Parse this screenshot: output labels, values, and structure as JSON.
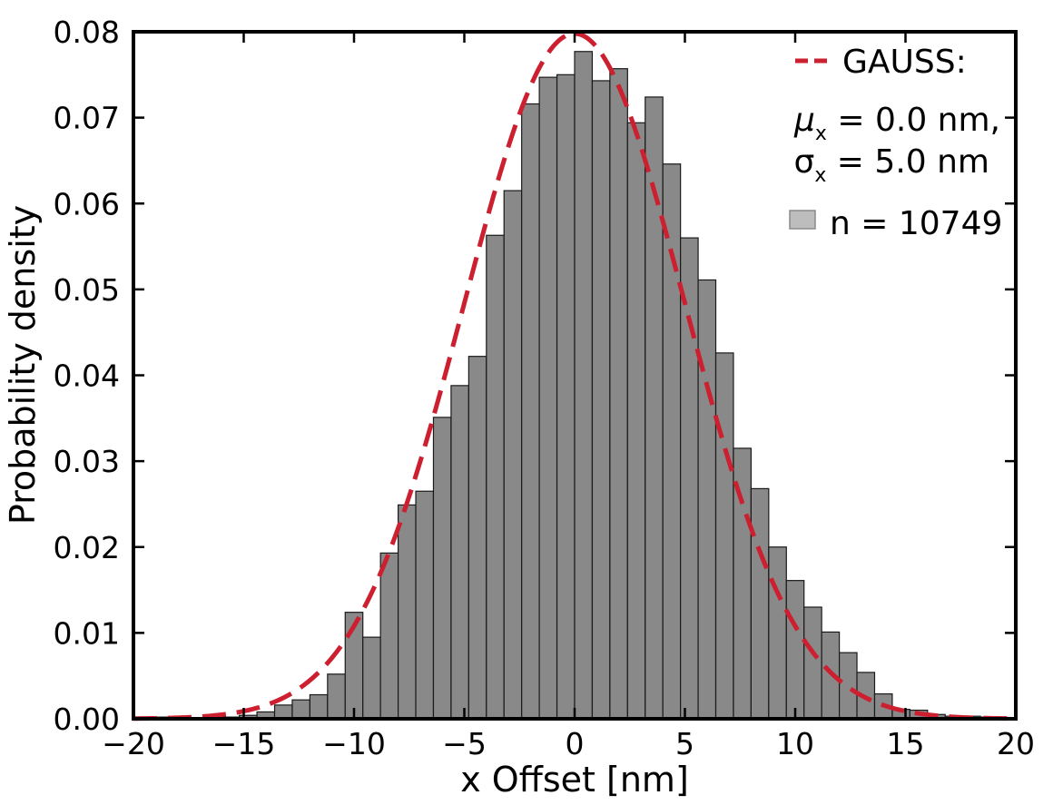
{
  "chart_data": {
    "type": "bar",
    "xlabel": "x Offset [nm]",
    "ylabel": "Probability density",
    "xlim": [
      -20,
      20
    ],
    "ylim": [
      0,
      0.08
    ],
    "xticks": [
      -20,
      -15,
      -10,
      -5,
      0,
      5,
      10,
      15,
      20
    ],
    "xtick_labels": [
      "−20",
      "−15",
      "−10",
      "−5",
      "0",
      "5",
      "10",
      "15",
      "20"
    ],
    "yticks": [
      0,
      0.01,
      0.02,
      0.03,
      0.04,
      0.05,
      0.06,
      0.07,
      0.08
    ],
    "ytick_labels": [
      "0.00",
      "0.01",
      "0.02",
      "0.03",
      "0.04",
      "0.05",
      "0.06",
      "0.07",
      "0.08"
    ],
    "bin_width": 0.8,
    "bins_start": [
      -20,
      -19.2,
      -18.4,
      -17.6,
      -16.8,
      -16,
      -15.2,
      -14.4,
      -13.6,
      -12.8,
      -12,
      -11.2,
      -10.4,
      -9.6,
      -8.8,
      -8,
      -7.2,
      -6.4,
      -5.6,
      -4.8,
      -4,
      -3.2,
      -2.4,
      -1.6,
      -0.8,
      0,
      0.8,
      1.6,
      2.4,
      3.2,
      4,
      4.8,
      5.6,
      6.4,
      7.2,
      8,
      8.8,
      9.6,
      10.4,
      11.2,
      12,
      12.8,
      13.6,
      14.4,
      15.2,
      16,
      16.8,
      17.6,
      18.4,
      19.2
    ],
    "values": [
      0.0001,
      0.0002,
      0.0002,
      0.0001,
      0.0002,
      0.0002,
      0.0004,
      0.0008,
      0.0016,
      0.0022,
      0.0028,
      0.0052,
      0.0124,
      0.0095,
      0.0193,
      0.0249,
      0.0265,
      0.0351,
      0.0388,
      0.0422,
      0.0563,
      0.0615,
      0.0716,
      0.0747,
      0.075,
      0.0777,
      0.0743,
      0.0757,
      0.0694,
      0.0724,
      0.0646,
      0.056,
      0.0511,
      0.0426,
      0.0315,
      0.0268,
      0.02,
      0.0161,
      0.013,
      0.0101,
      0.0077,
      0.0054,
      0.0029,
      0.0011,
      0.001,
      0.0005,
      0.0003,
      0.0003,
      0.0002,
      0.0001
    ],
    "bar_color": "#898989",
    "fit_curve": {
      "mu": 0.0,
      "sigma": 5.0,
      "color": "#cc1f2f",
      "style": "dashed"
    },
    "legend": {
      "placement": "top-right",
      "fit_label": "GAUSS:",
      "mu_label": "μ",
      "mu_sub": "x",
      "mu_value": " = 0.0 nm,",
      "sigma_label": "σ",
      "sigma_sub": "x",
      "sigma_value": " = 5.0 nm",
      "hist_label": "n = 10749"
    },
    "grid": false
  }
}
